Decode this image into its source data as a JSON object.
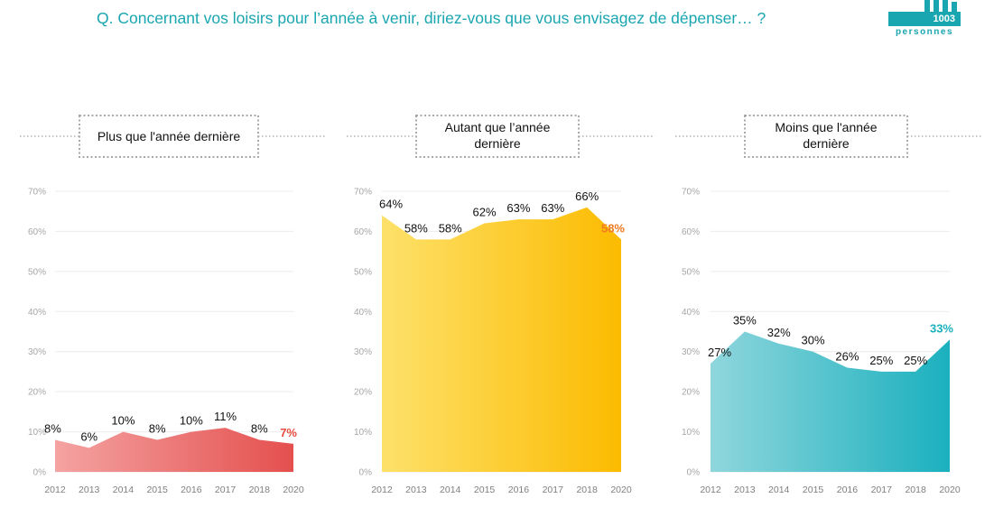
{
  "header": {
    "question": "Q. Concernant vos loisirs pour l’année à venir, diriez-vous que vous envisagez de dépenser… ?",
    "logo_count": "1003",
    "logo_unit": "personnes"
  },
  "colors": {
    "accent": "#1aa6b0",
    "highlight_red": "#e84c3d",
    "highlight_orange": "#f07b22",
    "highlight_teal": "#1ab0be"
  },
  "chart_data": [
    {
      "type": "area",
      "title": "Plus que l'année dernière",
      "x": [
        "2012",
        "2013",
        "2014",
        "2015",
        "2016",
        "2017",
        "2018",
        "2020"
      ],
      "values": [
        8,
        6,
        10,
        8,
        10,
        11,
        8,
        7
      ],
      "data_labels": [
        "8%",
        "6%",
        "10%",
        "8%",
        "10%",
        "11%",
        "8%",
        "7%"
      ],
      "yticks": [
        "0%",
        "10%",
        "20%",
        "30%",
        "40%",
        "50%",
        "60%",
        "70%"
      ],
      "ylim": [
        0,
        70
      ],
      "grid": true,
      "gradient": [
        "#f4a3a2",
        "#e4504e"
      ],
      "last_label_color": "#e84c3d"
    },
    {
      "type": "area",
      "title": "Autant que l’année dernière",
      "x": [
        "2012",
        "2013",
        "2014",
        "2015",
        "2016",
        "2017",
        "2018",
        "2020"
      ],
      "values": [
        64,
        58,
        58,
        62,
        63,
        63,
        66,
        58
      ],
      "data_labels": [
        "64%",
        "58%",
        "58%",
        "62%",
        "63%",
        "63%",
        "66%",
        "58%"
      ],
      "yticks": [
        "0%",
        "10%",
        "20%",
        "30%",
        "40%",
        "50%",
        "60%",
        "70%"
      ],
      "ylim": [
        0,
        70
      ],
      "grid": true,
      "gradient": [
        "#fde16a",
        "#fcbb00"
      ],
      "last_label_color": "#f07b22"
    },
    {
      "type": "area",
      "title": "Moins que l'année dernière",
      "x": [
        "2012",
        "2013",
        "2014",
        "2015",
        "2016",
        "2017",
        "2018",
        "2020"
      ],
      "values": [
        27,
        35,
        32,
        30,
        26,
        25,
        25,
        33
      ],
      "data_labels": [
        "27%",
        "35%",
        "32%",
        "30%",
        "26%",
        "25%",
        "25%",
        "33%"
      ],
      "yticks": [
        "0%",
        "10%",
        "20%",
        "30%",
        "40%",
        "50%",
        "60%",
        "70%"
      ],
      "ylim": [
        0,
        70
      ],
      "grid": true,
      "gradient": [
        "#8fd6dc",
        "#1ab0be"
      ],
      "last_label_color": "#1ab0be"
    }
  ]
}
